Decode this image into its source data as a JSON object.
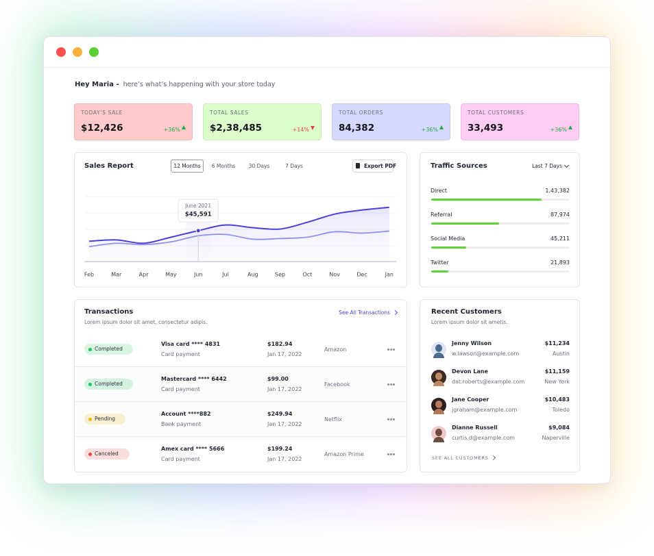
{
  "greeting": {
    "name": "Hey Maria -",
    "message": "here’s what’s happening with your store today"
  },
  "stats": [
    {
      "label": "TODAY’S SALE",
      "value": "$12,426",
      "change": "+36%",
      "trend": "up",
      "color": "#fecaca"
    },
    {
      "label": "TOTAL SALES",
      "value": "$2,38,485",
      "change": "+14%",
      "trend": "down",
      "color": "#ddfccb"
    },
    {
      "label": "TOTAL ORDERS",
      "value": "84,382",
      "change": "+36%",
      "trend": "up",
      "color": "#d6d9fd"
    },
    {
      "label": "TOTAL CUSTOMERS",
      "value": "33,493",
      "change": "+36%",
      "trend": "up",
      "color": "#fdccf1"
    }
  ],
  "sales_report": {
    "title": "Sales Report",
    "tabs": [
      "12 Months",
      "6 Months",
      "30 Days",
      "7 Days"
    ],
    "active_tab": 0,
    "export": "Export PDF",
    "chart": {
      "type": "line",
      "categories": [
        "Feb",
        "Mar",
        "Apr",
        "May",
        "Jun",
        "Jul",
        "Aug",
        "Sep",
        "Oct",
        "Nov",
        "Dec",
        "Jan"
      ],
      "series": [
        {
          "color": "#4c3fd6",
          "values": [
            30000,
            32000,
            27000,
            36000,
            45591,
            54000,
            50000,
            48000,
            58000,
            70000,
            76000,
            80000
          ]
        },
        {
          "color": "#8c90f0",
          "values": [
            22000,
            27000,
            25000,
            29000,
            38000,
            40000,
            33000,
            34000,
            36000,
            44000,
            42000,
            45000
          ]
        }
      ],
      "ylim": [
        0,
        100000
      ]
    },
    "tooltip": {
      "date": "June 2021",
      "value": "$45,591"
    }
  },
  "traffic": {
    "title": "Traffic Sources",
    "period": "Last 7 Days",
    "xlim": [
      0,
      180000
    ],
    "bar_color": "#5fd13f",
    "sources": [
      {
        "name": "Direct",
        "value": 143382,
        "label": "1,43,382"
      },
      {
        "name": "Referral",
        "value": 87974,
        "label": "87,974"
      },
      {
        "name": "Social Media",
        "value": 45211,
        "label": "45,211"
      },
      {
        "name": "Twitter",
        "value": 21893,
        "label": "21,893"
      }
    ]
  },
  "transactions": {
    "title": "Transactions",
    "subtitle": "Lorem ipsum dolor sit amet, consectetur adipis.",
    "link": "See All Transactions",
    "rows": [
      {
        "status": "Completed",
        "status_color": "#22c55e",
        "card": "Visa card **** 4831",
        "method": "Card payment",
        "amount": "$182.94",
        "date": "Jan 17, 2022",
        "merchant": "Amazon"
      },
      {
        "status": "Completed",
        "status_color": "#22c55e",
        "card": "Mastercard **** 6442",
        "method": "Card payment",
        "amount": "$99.00",
        "date": "Jan 17, 2022",
        "merchant": "Facebook"
      },
      {
        "status": "Pending",
        "status_color": "#eab308",
        "card": "Account ****882",
        "method": "Bank payment",
        "amount": "$249.94",
        "date": "Jan 17, 2022",
        "merchant": "Netflix"
      },
      {
        "status": "Canceled",
        "status_color": "#ef4444",
        "card": "Amex card **** 5666",
        "method": "Card payment",
        "amount": "$199.24",
        "date": "Jan 17, 2022",
        "merchant": "Amazon Prime"
      }
    ]
  },
  "customers": {
    "title": "Recent Customers",
    "subtitle": "Lorem ipsum dolor sit ametis.",
    "link": "SEE ALL CUSTOMERS",
    "rows": [
      {
        "name": "Jenny Wilson",
        "email": "w.lawson@example.com",
        "amount": "$11,234",
        "city": "Austin"
      },
      {
        "name": "Devon Lane",
        "email": "dat.roberts@example.com",
        "amount": "$11,159",
        "city": "New York"
      },
      {
        "name": "Jane Cooper",
        "email": "jgraham@example.com",
        "amount": "$10,483",
        "city": "Toledo"
      },
      {
        "name": "Dianne Russell",
        "email": "curtis.d@example.com",
        "amount": "$9,084",
        "city": "Naperville"
      }
    ]
  }
}
